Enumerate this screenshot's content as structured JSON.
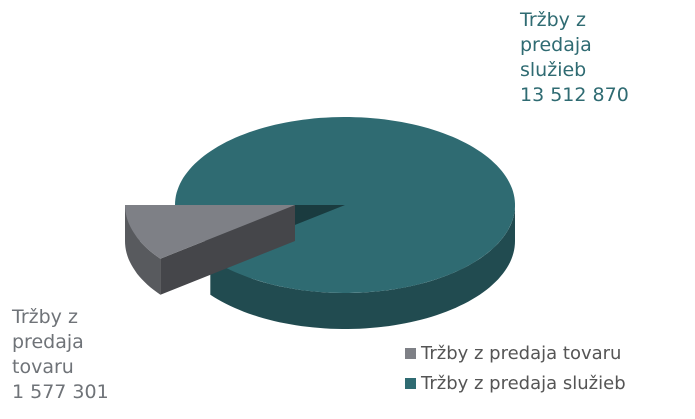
{
  "chart_data": {
    "type": "pie",
    "categories": [
      "Tržby z predaja tovaru",
      "Tržby z predaja služieb"
    ],
    "values": [
      1577301,
      13512870
    ],
    "value_labels": [
      "1 577 301",
      "13 512 870"
    ],
    "colors": [
      "#7e8086",
      "#2f6b72"
    ],
    "legend": "bottom-right"
  }
}
